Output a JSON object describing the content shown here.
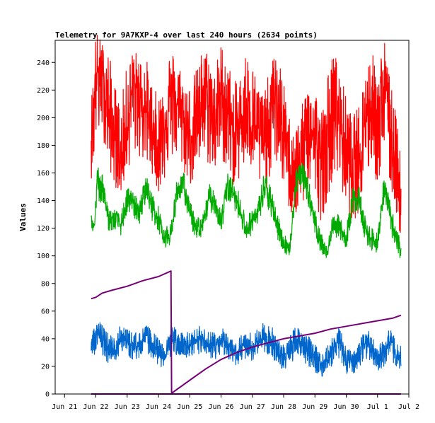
{
  "chart_data": {
    "type": "line",
    "title": "Telemetry for 9A7KXP-4 over last 240 hours (2634 points)",
    "xlabel": "",
    "ylabel": "Values",
    "ylim": [
      0,
      256
    ],
    "yticks": [
      0,
      20,
      40,
      60,
      80,
      100,
      120,
      140,
      160,
      180,
      200,
      220,
      240
    ],
    "xlim": [
      -0.3,
      11.0
    ],
    "xtick_labels": [
      "Jun 21",
      "Jun 22",
      "Jun 23",
      "Jun 24",
      "Jun 25",
      "Jun 26",
      "Jun 27",
      "Jun 28",
      "Jun 29",
      "Jun 30",
      "Jul 1",
      "Jul 2"
    ],
    "xticks": [
      0,
      1,
      2,
      3,
      4,
      5,
      6,
      7,
      8,
      9,
      10,
      11
    ],
    "grid": false,
    "legend": false,
    "series": [
      {
        "color": "#ff0000",
        "x": [
          0.85,
          0.95,
          1.0,
          1.2,
          1.4,
          1.6,
          1.8,
          2.0,
          2.2,
          2.4,
          2.6,
          2.8,
          3.0,
          3.2,
          3.4,
          3.6,
          3.8,
          4.0,
          4.2,
          4.4,
          4.6,
          4.8,
          5.0,
          5.2,
          5.4,
          5.6,
          5.8,
          6.0,
          6.2,
          6.4,
          6.6,
          6.8,
          7.0,
          7.2,
          7.4,
          7.6,
          7.8,
          8.0,
          8.2,
          8.4,
          8.6,
          8.8,
          9.0,
          9.2,
          9.4,
          9.6,
          9.8,
          10.0,
          10.2,
          10.4,
          10.6,
          10.75
        ],
        "y": [
          190,
          210,
          235,
          228,
          205,
          185,
          165,
          195,
          225,
          215,
          205,
          190,
          175,
          200,
          215,
          210,
          200,
          185,
          195,
          215,
          210,
          195,
          220,
          205,
          185,
          195,
          210,
          200,
          190,
          180,
          205,
          215,
          185,
          165,
          160,
          175,
          195,
          185,
          165,
          190,
          210,
          195,
          175,
          160,
          170,
          200,
          215,
          195,
          225,
          190,
          165,
          155
        ],
        "y_min": [
          155,
          170,
          180,
          190,
          165,
          150,
          145,
          160,
          175,
          170,
          165,
          160,
          145,
          155,
          170,
          170,
          160,
          150,
          155,
          170,
          165,
          160,
          170,
          160,
          150,
          155,
          165,
          160,
          150,
          145,
          160,
          165,
          150,
          130,
          125,
          135,
          150,
          140,
          125,
          140,
          160,
          150,
          135,
          125,
          130,
          150,
          165,
          150,
          170,
          150,
          130,
          110
        ],
        "y_max": [
          215,
          240,
          264,
          255,
          250,
          225,
          210,
          240,
          250,
          245,
          245,
          225,
          215,
          245,
          250,
          245,
          230,
          225,
          235,
          250,
          250,
          235,
          255,
          245,
          225,
          230,
          250,
          240,
          225,
          220,
          240,
          250,
          225,
          200,
          195,
          210,
          230,
          225,
          205,
          230,
          250,
          235,
          215,
          200,
          210,
          235,
          250,
          235,
          260,
          230,
          200,
          190
        ]
      },
      {
        "color": "#00aa00",
        "x": [
          0.85,
          0.95,
          1.05,
          1.2,
          1.4,
          1.6,
          1.8,
          2.0,
          2.2,
          2.4,
          2.6,
          2.8,
          3.0,
          3.2,
          3.4,
          3.6,
          3.8,
          4.0,
          4.2,
          4.4,
          4.6,
          4.8,
          5.0,
          5.2,
          5.4,
          5.6,
          5.8,
          6.0,
          6.2,
          6.4,
          6.6,
          6.8,
          7.0,
          7.2,
          7.4,
          7.6,
          7.8,
          8.0,
          8.2,
          8.4,
          8.6,
          8.8,
          9.0,
          9.2,
          9.4,
          9.6,
          9.8,
          10.0,
          10.2,
          10.4,
          10.6,
          10.75
        ],
        "y": [
          124,
          120,
          155,
          150,
          128,
          126,
          122,
          140,
          138,
          132,
          152,
          135,
          128,
          112,
          115,
          148,
          152,
          130,
          120,
          118,
          142,
          140,
          125,
          150,
          145,
          135,
          118,
          125,
          132,
          150,
          138,
          122,
          108,
          105,
          155,
          160,
          145,
          125,
          108,
          102,
          125,
          118,
          112,
          140,
          142,
          120,
          112,
          110,
          148,
          130,
          110,
          104
        ],
        "y_min": [
          118,
          115,
          140,
          138,
          118,
          118,
          115,
          130,
          128,
          122,
          140,
          125,
          118,
          106,
          108,
          138,
          142,
          122,
          112,
          110,
          132,
          130,
          115,
          140,
          135,
          125,
          110,
          116,
          122,
          138,
          128,
          112,
          102,
          100,
          145,
          150,
          135,
          116,
          100,
          98,
          116,
          110,
          104,
          130,
          132,
          110,
          104,
          102,
          138,
          120,
          100,
          98
        ],
        "y_max": [
          130,
          128,
          167,
          160,
          135,
          134,
          130,
          150,
          146,
          140,
          160,
          145,
          136,
          120,
          124,
          158,
          162,
          140,
          130,
          128,
          152,
          150,
          134,
          160,
          155,
          145,
          128,
          134,
          142,
          165,
          148,
          132,
          116,
          112,
          165,
          168,
          155,
          134,
          116,
          108,
          134,
          128,
          120,
          150,
          152,
          130,
          120,
          118,
          158,
          140,
          120,
          112
        ]
      },
      {
        "color": "#0066cc",
        "x": [
          0.85,
          1.0,
          1.2,
          1.4,
          1.6,
          1.8,
          2.0,
          2.2,
          2.4,
          2.6,
          2.8,
          3.0,
          3.2,
          3.4,
          3.6,
          3.8,
          4.0,
          4.2,
          4.4,
          4.6,
          4.8,
          5.0,
          5.2,
          5.4,
          5.6,
          5.8,
          6.0,
          6.2,
          6.4,
          6.6,
          6.8,
          7.0,
          7.2,
          7.4,
          7.6,
          7.8,
          8.0,
          8.2,
          8.4,
          8.6,
          8.8,
          9.0,
          9.2,
          9.4,
          9.6,
          9.8,
          10.0,
          10.2,
          10.4,
          10.6,
          10.75
        ],
        "y": [
          35,
          45,
          38,
          33,
          32,
          40,
          38,
          33,
          36,
          42,
          37,
          30,
          25,
          40,
          38,
          35,
          34,
          37,
          40,
          36,
          35,
          38,
          36,
          30,
          32,
          36,
          34,
          38,
          40,
          38,
          30,
          26,
          32,
          40,
          36,
          32,
          27,
          22,
          26,
          34,
          38,
          24,
          22,
          28,
          38,
          34,
          25,
          30,
          38,
          28,
          26
        ],
        "y_min": [
          25,
          30,
          28,
          22,
          24,
          28,
          28,
          24,
          26,
          30,
          26,
          20,
          18,
          28,
          28,
          25,
          24,
          26,
          28,
          26,
          25,
          28,
          26,
          20,
          22,
          26,
          24,
          28,
          30,
          26,
          18,
          16,
          20,
          28,
          24,
          20,
          16,
          12,
          16,
          22,
          26,
          14,
          14,
          18,
          26,
          24,
          16,
          20,
          26,
          18,
          18
        ],
        "y_max": [
          44,
          59,
          50,
          44,
          44,
          50,
          48,
          44,
          46,
          50,
          46,
          40,
          34,
          50,
          48,
          46,
          44,
          48,
          50,
          46,
          45,
          48,
          46,
          40,
          42,
          46,
          44,
          48,
          53,
          50,
          40,
          36,
          42,
          50,
          46,
          42,
          36,
          30,
          36,
          44,
          50,
          34,
          30,
          36,
          48,
          44,
          34,
          40,
          48,
          38,
          36
        ]
      },
      {
        "color": "#770077",
        "x": [
          0.85,
          1.0,
          1.2,
          1.5,
          2.0,
          2.5,
          3.0,
          3.4,
          3.42,
          3.45,
          4.0,
          4.5,
          5.0,
          5.5,
          6.0,
          6.5,
          7.0,
          7.5,
          8.0,
          8.5,
          9.0,
          9.5,
          10.0,
          10.5,
          10.75
        ],
        "y": [
          69,
          70,
          73,
          75,
          78,
          82,
          85,
          89,
          1,
          1,
          10,
          18,
          25,
          30,
          34,
          37,
          40,
          42,
          44,
          47,
          49,
          51,
          53,
          55,
          57
        ]
      },
      {
        "color": "#770077",
        "x": [
          0.85,
          10.75
        ],
        "y": [
          0,
          0
        ]
      }
    ]
  }
}
